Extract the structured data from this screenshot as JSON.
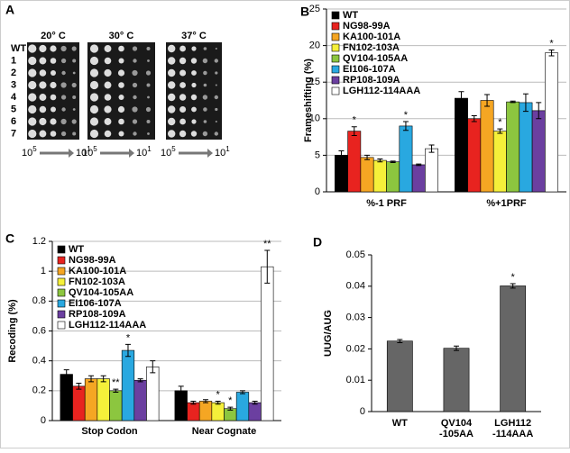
{
  "image_panel": {
    "panel_label": "A",
    "temperatures": [
      "20° C",
      "30° C",
      "37° C"
    ],
    "rows": [
      "WT",
      "1",
      "2",
      "3",
      "4",
      "5",
      "6",
      "7"
    ],
    "dilution_start": {
      "base": "10",
      "exp": "5"
    },
    "dilution_end": {
      "base": "10",
      "exp": "1"
    }
  },
  "chart_data": [
    {
      "type": "bar",
      "panel_label": "B",
      "y_label": "Frameshifting (%)",
      "categories": [
        "%-1 PRF",
        "%+1PRF"
      ],
      "ylim": [
        0,
        25
      ],
      "yticks": [
        0,
        5,
        10,
        15,
        20,
        25
      ],
      "grid": true,
      "legend": "top-left",
      "series": [
        {
          "name": "WT",
          "color": "#000000",
          "values": [
            5.0,
            12.8
          ],
          "errors": [
            0.6,
            0.9
          ],
          "annotations": [
            null,
            null
          ]
        },
        {
          "name": "NG98-99A",
          "color": "#e8231f",
          "values": [
            8.3,
            10.0
          ],
          "errors": [
            0.6,
            0.4
          ],
          "annotations": [
            "*",
            null
          ]
        },
        {
          "name": "KA100-101A",
          "color": "#f5a623",
          "values": [
            4.7,
            12.5
          ],
          "errors": [
            0.3,
            0.8
          ],
          "annotations": [
            null,
            null
          ]
        },
        {
          "name": "FN102-103A",
          "color": "#f5f03a",
          "values": [
            4.3,
            8.3
          ],
          "errors": [
            0.2,
            0.3
          ],
          "annotations": [
            null,
            "*"
          ]
        },
        {
          "name": "QV104-105AA",
          "color": "#8cc63f",
          "values": [
            4.1,
            12.3
          ],
          "errors": [
            0.1,
            0.1
          ],
          "annotations": [
            null,
            null
          ]
        },
        {
          "name": "EI106-107A",
          "color": "#29a8e0",
          "values": [
            9.0,
            12.2
          ],
          "errors": [
            0.6,
            1.2
          ],
          "annotations": [
            "*",
            null
          ]
        },
        {
          "name": "RP108-109A",
          "color": "#6b3fa0",
          "values": [
            3.7,
            11.1
          ],
          "errors": [
            0.1,
            1.1
          ],
          "annotations": [
            null,
            null
          ]
        },
        {
          "name": "LGH112-114AAA",
          "color": "#ffffff",
          "values": [
            5.9,
            19.0
          ],
          "errors": [
            0.5,
            0.4
          ],
          "annotations": [
            null,
            "*"
          ]
        }
      ]
    },
    {
      "type": "bar",
      "panel_label": "C",
      "y_label": "Recoding (%)",
      "categories": [
        "Stop Codon",
        "Near Cognate"
      ],
      "ylim": [
        0,
        1.2
      ],
      "yticks": [
        0,
        0.2,
        0.4,
        0.6,
        0.8,
        1,
        1.2
      ],
      "grid": true,
      "legend": "top-left",
      "series": [
        {
          "name": "WT",
          "color": "#000000",
          "values": [
            0.31,
            0.2
          ],
          "errors": [
            0.03,
            0.03
          ],
          "annotations": [
            null,
            null
          ]
        },
        {
          "name": "NG98-99A",
          "color": "#e8231f",
          "values": [
            0.23,
            0.12
          ],
          "errors": [
            0.02,
            0.01
          ],
          "annotations": [
            null,
            null
          ]
        },
        {
          "name": "KA100-101A",
          "color": "#f5a623",
          "values": [
            0.28,
            0.13
          ],
          "errors": [
            0.02,
            0.01
          ],
          "annotations": [
            null,
            null
          ]
        },
        {
          "name": "FN102-103A",
          "color": "#f5f03a",
          "values": [
            0.28,
            0.12
          ],
          "errors": [
            0.02,
            0.01
          ],
          "annotations": [
            null,
            "*"
          ]
        },
        {
          "name": "QV104-105AA",
          "color": "#8cc63f",
          "values": [
            0.2,
            0.08
          ],
          "errors": [
            0.01,
            0.01
          ],
          "annotations": [
            "**",
            "*"
          ]
        },
        {
          "name": "EI106-107A",
          "color": "#29a8e0",
          "values": [
            0.47,
            0.19
          ],
          "errors": [
            0.04,
            0.01
          ],
          "annotations": [
            "*",
            null
          ]
        },
        {
          "name": "RP108-109A",
          "color": "#6b3fa0",
          "values": [
            0.27,
            0.12
          ],
          "errors": [
            0.01,
            0.01
          ],
          "annotations": [
            null,
            null
          ]
        },
        {
          "name": "LGH112-114AAA",
          "color": "#ffffff",
          "values": [
            0.36,
            1.03
          ],
          "errors": [
            0.04,
            0.11
          ],
          "annotations": [
            null,
            "**"
          ]
        }
      ]
    },
    {
      "type": "bar",
      "panel_label": "D",
      "y_label": "UUG/AUG",
      "categories": [
        [
          "WT"
        ],
        [
          "QV104",
          "-105AA"
        ],
        [
          "LGH112",
          "-114AAA"
        ]
      ],
      "ylim": [
        0,
        0.05
      ],
      "yticks": [
        0,
        0.01,
        0.02,
        0.03,
        0.04,
        0.05
      ],
      "grid": false,
      "color": "#666666",
      "values": [
        0.0225,
        0.0202,
        0.0401
      ],
      "errors": [
        0.0005,
        0.0007,
        0.0007
      ],
      "annotations": [
        null,
        null,
        "*"
      ]
    }
  ]
}
